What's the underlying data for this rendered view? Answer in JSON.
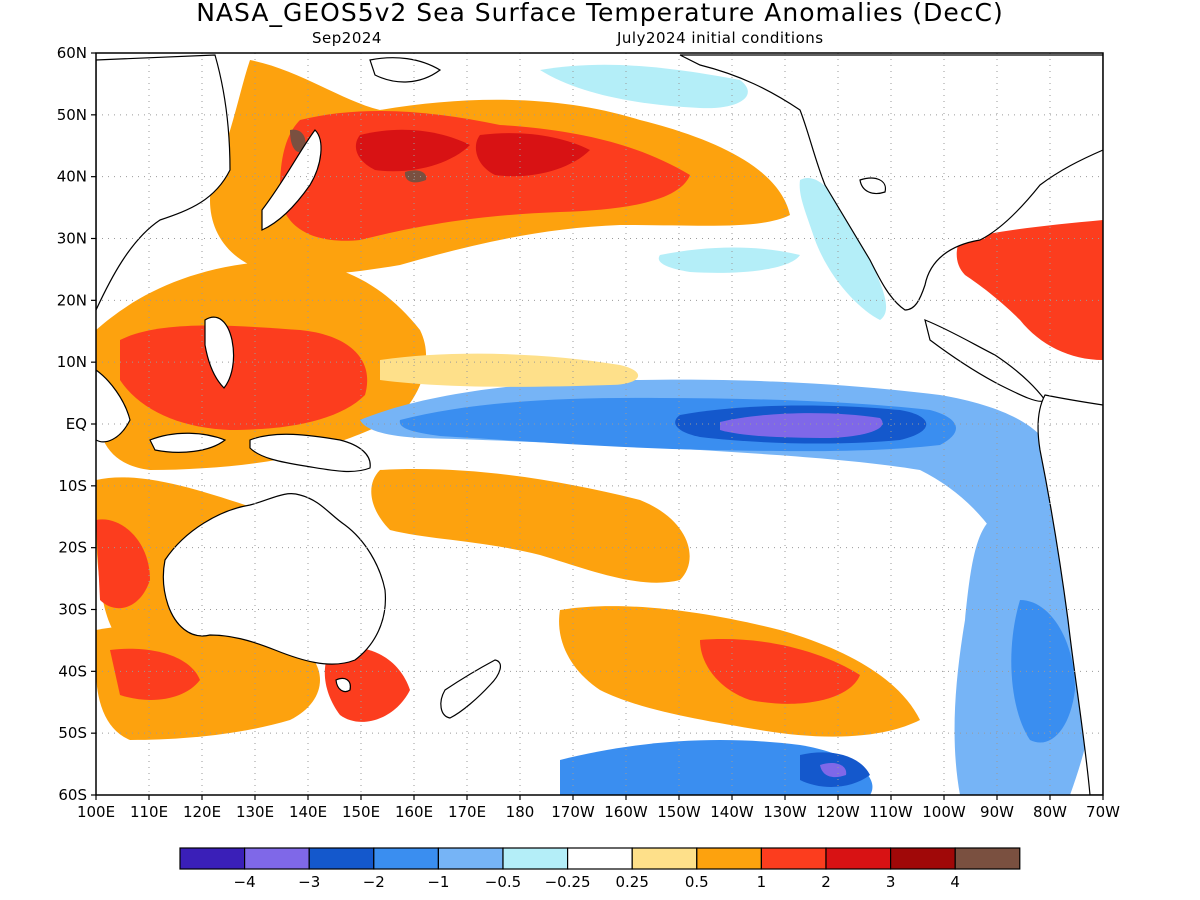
{
  "header": {
    "title": "NASA_GEOS5v2 Sea Surface Temperature Anomalies (DecC)",
    "forecast_month": "Sep2024",
    "initial_conditions": "July2024 initial conditions"
  },
  "map": {
    "lat_labels": [
      "60N",
      "50N",
      "40N",
      "30N",
      "20N",
      "10N",
      "EQ",
      "10S",
      "20S",
      "30S",
      "40S",
      "50S",
      "60S"
    ],
    "lon_labels": [
      "100E",
      "110E",
      "120E",
      "130E",
      "140E",
      "150E",
      "160E",
      "170E",
      "180",
      "170W",
      "160W",
      "150W",
      "140W",
      "130W",
      "120W",
      "110W",
      "100W",
      "90W",
      "80W",
      "70W"
    ],
    "lat_range": [
      -60,
      60
    ],
    "lon_range": [
      100,
      290
    ],
    "grid": true
  },
  "legend": {
    "colors": [
      "#3a1fb8",
      "#7f68e8",
      "#1458cc",
      "#3a8ef0",
      "#76b4f6",
      "#b4eef8",
      "#ffffff",
      "#fee08a",
      "#fda20e",
      "#fc3d1e",
      "#d81214",
      "#a00808",
      "#7a5040"
    ],
    "labels": [
      "−4",
      "−3",
      "−2",
      "−1",
      "−0.5",
      "−0.25",
      "0.25",
      "0.5",
      "1",
      "2",
      "3",
      "4"
    ]
  },
  "colors": {
    "land": "#ffffff",
    "coast": "#000000",
    "neutral_ocean": "#ffffff"
  }
}
